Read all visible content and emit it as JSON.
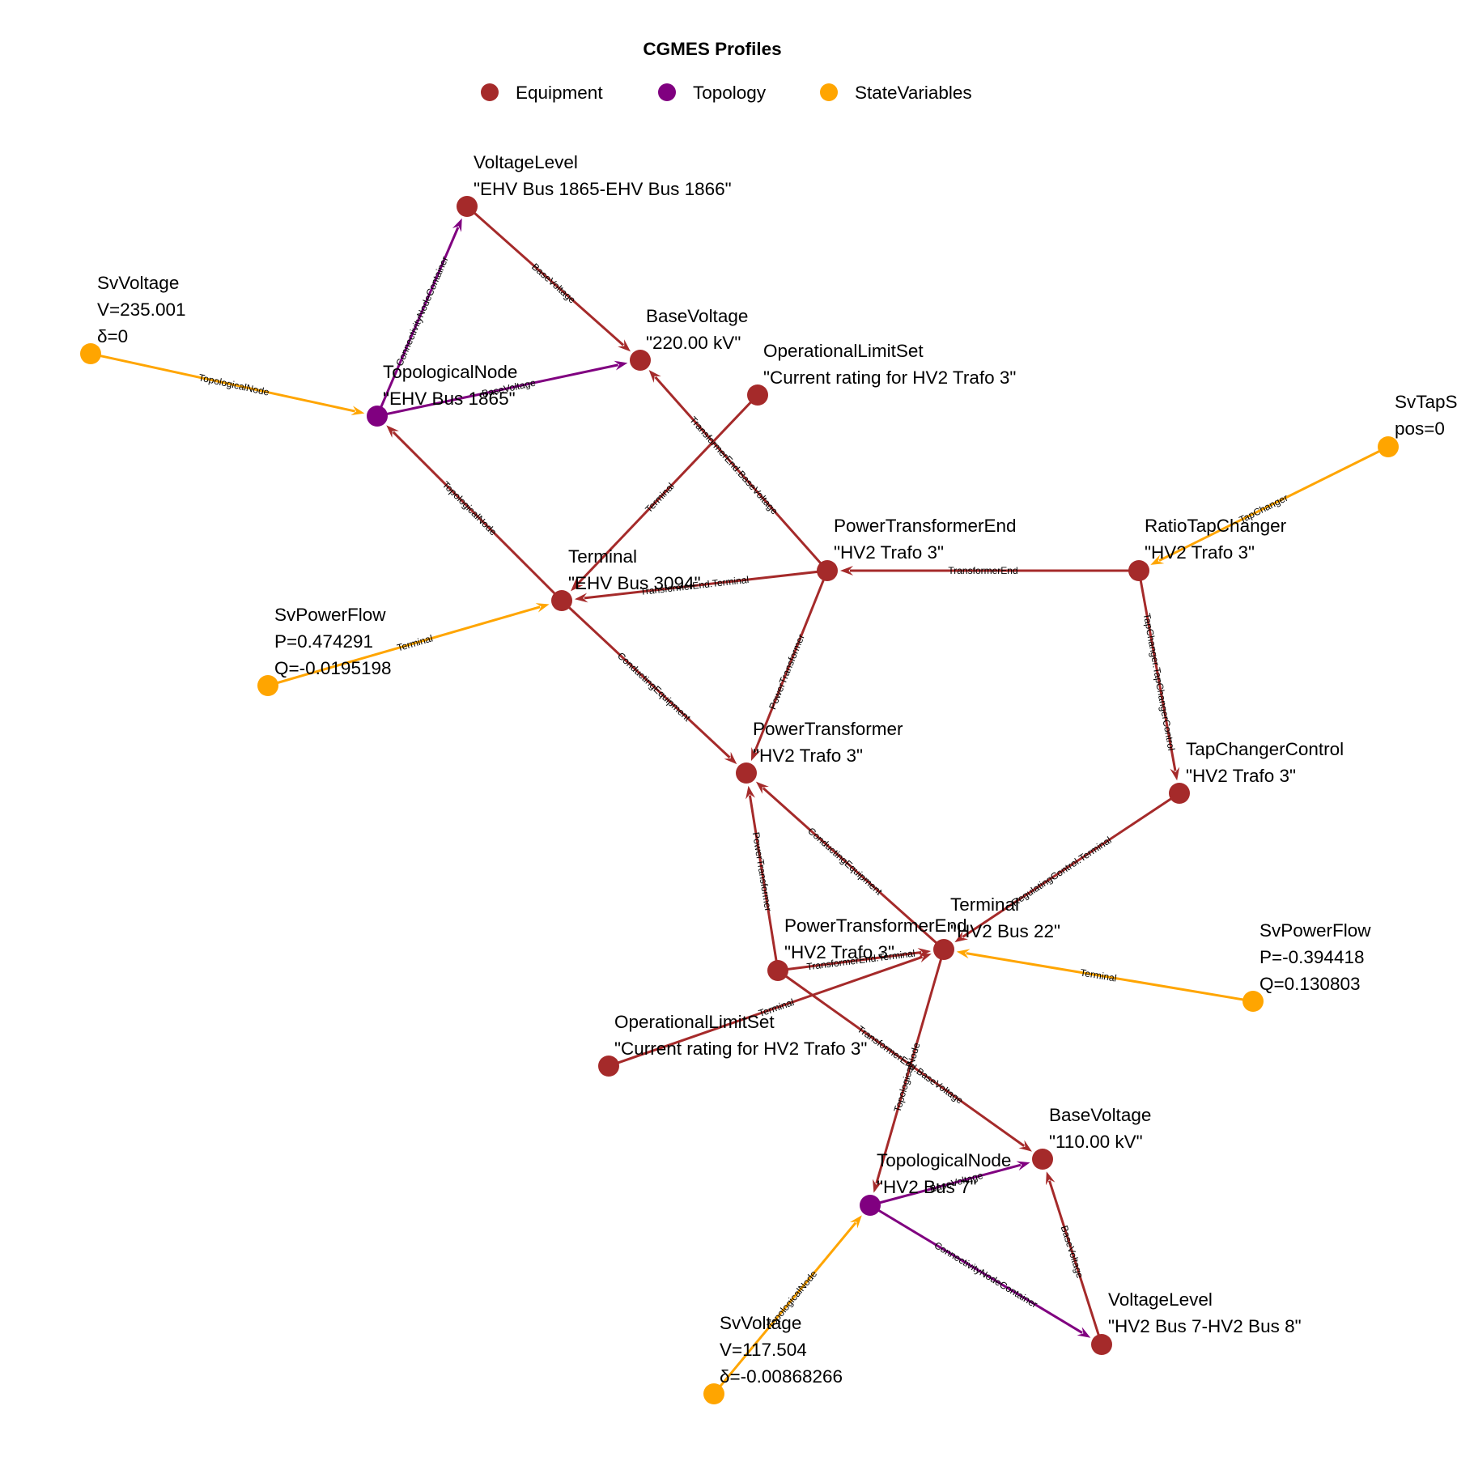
{
  "legend": {
    "title": "CGMES Profiles",
    "items": [
      {
        "label": "Equipment",
        "color": "#A52A2A"
      },
      {
        "label": "Topology",
        "color": "#800080"
      },
      {
        "label": "StateVariables",
        "color": "#FFA500"
      }
    ]
  },
  "nodes": [
    {
      "id": "vl1",
      "profile": "Equipment",
      "lines": [
        "VoltageLevel",
        "\"EHV Bus 1865-EHV Bus 1866\""
      ]
    },
    {
      "id": "sv1",
      "profile": "StateVariables",
      "lines": [
        "SvVoltage",
        "V=235.001",
        "δ=0"
      ]
    },
    {
      "id": "bv1",
      "profile": "Equipment",
      "lines": [
        "BaseVoltage",
        "\"220.00 kV\""
      ]
    },
    {
      "id": "ols1",
      "profile": "Equipment",
      "lines": [
        "OperationalLimitSet",
        "\"Current rating for HV2 Trafo 3\""
      ]
    },
    {
      "id": "tn1",
      "profile": "Topology",
      "lines": [
        "TopologicalNode",
        "\"EHV Bus 1865\""
      ]
    },
    {
      "id": "svtap",
      "profile": "StateVariables",
      "lines": [
        "SvTapStep",
        "pos=0"
      ]
    },
    {
      "id": "pte1",
      "profile": "Equipment",
      "lines": [
        "PowerTransformerEnd",
        "\"HV2 Trafo 3\""
      ]
    },
    {
      "id": "rtc",
      "profile": "Equipment",
      "lines": [
        "RatioTapChanger",
        "\"HV2 Trafo 3\""
      ]
    },
    {
      "id": "t1",
      "profile": "Equipment",
      "lines": [
        "Terminal",
        "\"EHV Bus 3094\""
      ]
    },
    {
      "id": "svpf1",
      "profile": "StateVariables",
      "lines": [
        "SvPowerFlow",
        "P=0.474291",
        "Q=-0.0195198"
      ]
    },
    {
      "id": "pt",
      "profile": "Equipment",
      "lines": [
        "PowerTransformer",
        "\"HV2 Trafo 3\""
      ]
    },
    {
      "id": "tcc",
      "profile": "Equipment",
      "lines": [
        "TapChangerControl",
        "\"HV2 Trafo 3\""
      ]
    },
    {
      "id": "t2",
      "profile": "Equipment",
      "lines": [
        "Terminal",
        "\"HV2 Bus 22\""
      ]
    },
    {
      "id": "pte2",
      "profile": "Equipment",
      "lines": [
        "PowerTransformerEnd",
        "\"HV2 Trafo 3\""
      ]
    },
    {
      "id": "svpf2",
      "profile": "StateVariables",
      "lines": [
        "SvPowerFlow",
        "P=-0.394418",
        "Q=0.130803"
      ]
    },
    {
      "id": "ols2",
      "profile": "Equipment",
      "lines": [
        "OperationalLimitSet",
        "\"Current rating for HV2 Trafo 3\""
      ]
    },
    {
      "id": "bv2",
      "profile": "Equipment",
      "lines": [
        "BaseVoltage",
        "\"110.00 kV\""
      ]
    },
    {
      "id": "tn2",
      "profile": "Topology",
      "lines": [
        "TopologicalNode",
        "\"HV2 Bus 7\""
      ]
    },
    {
      "id": "vl2",
      "profile": "Equipment",
      "lines": [
        "VoltageLevel",
        "\"HV2 Bus 7-HV2 Bus 8\""
      ]
    },
    {
      "id": "sv2",
      "profile": "StateVariables",
      "lines": [
        "SvVoltage",
        "V=117.504",
        "δ=-0.00868266"
      ]
    }
  ],
  "edges": [
    {
      "from": "tn1",
      "to": "vl1",
      "label": "ConnectivityNodeContainer"
    },
    {
      "from": "vl1",
      "to": "bv1",
      "label": "BaseVoltage"
    },
    {
      "from": "tn1",
      "to": "bv1",
      "label": "BaseVoltage"
    },
    {
      "from": "sv1",
      "to": "tn1",
      "label": "TopologicalNode"
    },
    {
      "from": "t1",
      "to": "tn1",
      "label": "TopologicalNode"
    },
    {
      "from": "ols1",
      "to": "t1",
      "label": "Terminal"
    },
    {
      "from": "pte1",
      "to": "bv1",
      "label": "TransformerEnd.BaseVoltage"
    },
    {
      "from": "pte1",
      "to": "t1",
      "label": "TransformerEnd.Terminal"
    },
    {
      "from": "rtc",
      "to": "pte1",
      "label": "TransformerEnd"
    },
    {
      "from": "svtap",
      "to": "rtc",
      "label": "TapChanger"
    },
    {
      "from": "rtc",
      "to": "tcc",
      "label": "TapChanger.TapChangerControl"
    },
    {
      "from": "svpf1",
      "to": "t1",
      "label": "Terminal"
    },
    {
      "from": "t1",
      "to": "pt",
      "label": "ConductingEquipment"
    },
    {
      "from": "pte1",
      "to": "pt",
      "label": "PowerTransformer"
    },
    {
      "from": "t2",
      "to": "pt",
      "label": "ConductingEquipment"
    },
    {
      "from": "pte2",
      "to": "pt",
      "label": "PowerTransformer"
    },
    {
      "from": "tcc",
      "to": "t2",
      "label": "RegulatingControl.Terminal"
    },
    {
      "from": "pte2",
      "to": "t2",
      "label": "TransformerEnd.Terminal"
    },
    {
      "from": "svpf2",
      "to": "t2",
      "label": "Terminal"
    },
    {
      "from": "ols2",
      "to": "t2",
      "label": "Terminal"
    },
    {
      "from": "pte2",
      "to": "bv2",
      "label": "TransformerEnd.BaseVoltage"
    },
    {
      "from": "t2",
      "to": "tn2",
      "label": "TopologicalNode"
    },
    {
      "from": "tn2",
      "to": "bv2",
      "label": "BaseVoltage"
    },
    {
      "from": "vl2",
      "to": "bv2",
      "label": "BaseVoltage"
    },
    {
      "from": "tn2",
      "to": "vl2",
      "label": "ConnectivityNodeContainer"
    },
    {
      "from": "sv2",
      "to": "tn2",
      "label": "TopologicalNode"
    }
  ]
}
